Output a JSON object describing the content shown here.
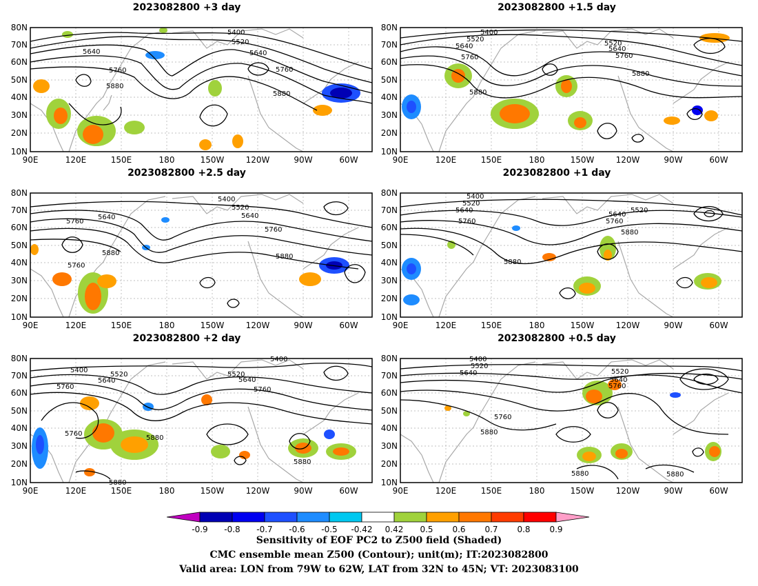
{
  "panels": [
    {
      "id": "p3",
      "title": "2023082800  +3 day"
    },
    {
      "id": "p15",
      "title": "2023082800  +1.5 day"
    },
    {
      "id": "p25",
      "title": "2023082800  +2.5 day"
    },
    {
      "id": "p1",
      "title": "2023082800  +1 day"
    },
    {
      "id": "p2",
      "title": "2023082800  +2 day"
    },
    {
      "id": "p05",
      "title": "2023082800  +0.5 day"
    }
  ],
  "lat_labels": [
    "80N",
    "70N",
    "60N",
    "50N",
    "40N",
    "30N",
    "20N",
    "10N"
  ],
  "lon_labels": [
    "90E",
    "120E",
    "150E",
    "180",
    "150W",
    "120W",
    "90W",
    "60W"
  ],
  "contour_labels": {
    "p3": [
      "5400",
      "5520",
      "5640",
      "5640",
      "5760",
      "5760",
      "5880",
      "5880"
    ],
    "p15": [
      "5400",
      "5520",
      "5640",
      "5760",
      "5520",
      "5640",
      "5760",
      "5880",
      "5880"
    ],
    "p25": [
      "5400",
      "5520",
      "5640",
      "5760",
      "5640",
      "5760",
      "5760",
      "5880",
      "5880"
    ],
    "p1": [
      "5400",
      "5520",
      "5640",
      "5760",
      "5520",
      "5640",
      "5760",
      "5880",
      "5880"
    ],
    "p2": [
      "5400",
      "5520",
      "5640",
      "5760",
      "5520",
      "5640",
      "5760",
      "5760",
      "5880",
      "5880",
      "5880"
    ],
    "p05": [
      "5400",
      "5520",
      "5640",
      "5520",
      "5640",
      "5760",
      "5760",
      "5880",
      "5880",
      "5880"
    ]
  },
  "colorbar": {
    "ticks": [
      "-0.9",
      "-0.8",
      "-0.7",
      "-0.6",
      "-0.5",
      "-0.42",
      "0.42",
      "0.5",
      "0.6",
      "0.7",
      "0.8",
      "0.9"
    ],
    "colors": [
      "#c000c0",
      "#0000b4",
      "#0000f0",
      "#1e50ff",
      "#1e8cff",
      "#00c8f0",
      "#ffffff",
      "#a0d23c",
      "#ffa000",
      "#ff7800",
      "#ff3c00",
      "#ff0000",
      "#ff9ec8"
    ]
  },
  "captions": [
    "Sensitivity of EOF PC2 to Z500 field (Shaded)",
    "CMC ensemble mean Z500 (Contour); unit(m); IT:2023082800",
    "Valid area: LON from 79W to 62W, LAT from 32N to 45N; VT: 2023083100"
  ]
}
